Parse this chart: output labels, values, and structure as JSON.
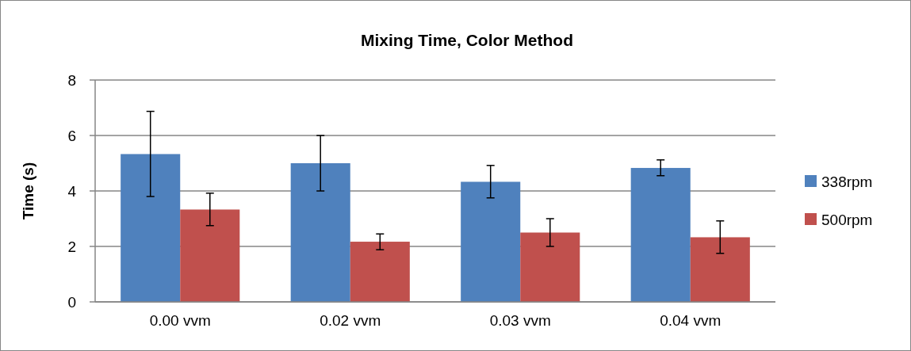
{
  "chart_data": {
    "type": "bar",
    "title": "Mixing Time, Color Method",
    "ylabel": "Time (s)",
    "categories": [
      "0.00 vvm",
      "0.02 vvm",
      "0.03 vvm",
      "0.04 vvm"
    ],
    "series": [
      {
        "name": "338rpm",
        "color": "#4f81bd",
        "values": [
          5.33,
          5.0,
          4.33,
          4.83
        ],
        "errors": [
          [
            3.8,
            6.87
          ],
          [
            4.0,
            6.0
          ],
          [
            3.75,
            4.92
          ],
          [
            4.55,
            5.12
          ]
        ]
      },
      {
        "name": "500rpm",
        "color": "#c0504d",
        "values": [
          3.33,
          2.17,
          2.5,
          2.33
        ],
        "errors": [
          [
            2.75,
            3.92
          ],
          [
            1.88,
            2.45
          ],
          [
            2.0,
            3.0
          ],
          [
            1.75,
            2.92
          ]
        ]
      }
    ],
    "ylim": [
      0,
      8
    ],
    "yticks": [
      0,
      2,
      4,
      6,
      8
    ],
    "grid": "y",
    "legend": "right"
  }
}
